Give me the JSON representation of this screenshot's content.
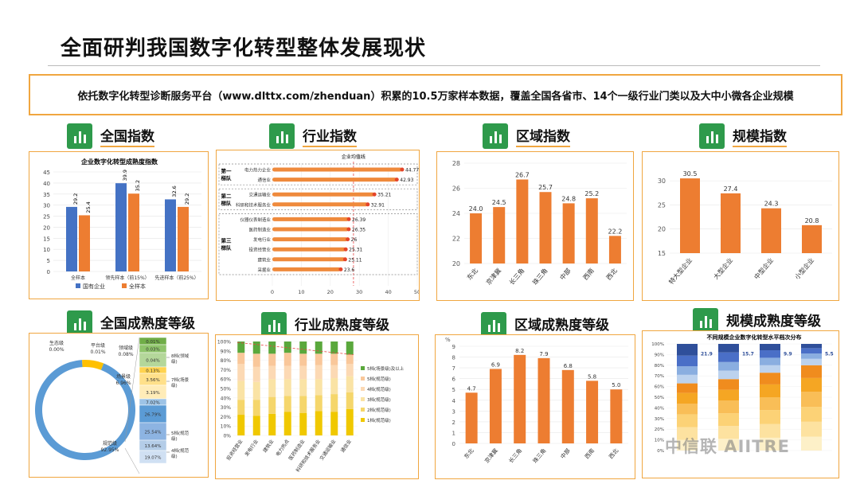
{
  "page": {
    "title": "全面研判我国数字化转型整体发展现状",
    "banner": "依托数字化转型诊断服务平台（www.dlttx.com/zhenduan）积累的10.5万家样本数据，覆盖全国各省市、14个一级行业门类以及大中小微各企业规模",
    "watermark": "中信联 AIITRE"
  },
  "sections": {
    "s1": "全国指数",
    "s2": "行业指数",
    "s3": "区域指数",
    "s4": "规模指数",
    "s5": "全国成熟度等级",
    "s6": "行业成熟度等级",
    "s7": "区域成熟度等级",
    "s8": "规模成熟度等级"
  },
  "colors": {
    "blue": "#4472c4",
    "orange": "#ed7d31",
    "accent": "#f0a640",
    "green": "#2e9a4b"
  },
  "chart_data": [
    {
      "id": "national_index",
      "type": "bar",
      "title": "企业数字化转型成熟度指数",
      "categories": [
        "全样本",
        "领先样本（前15%）",
        "先进样本（前25%）"
      ],
      "series": [
        {
          "name": "国有企业",
          "values": [
            29.2,
            39.9,
            32.6
          ]
        },
        {
          "name": "全样本",
          "values": [
            25.4,
            35.2,
            29.2
          ]
        }
      ],
      "ylim": [
        0,
        45
      ],
      "yticks": [
        0,
        5,
        10,
        15,
        20,
        25,
        30,
        35,
        40,
        45
      ],
      "legend": "bottom"
    },
    {
      "id": "industry_index",
      "type": "bar",
      "title": "企业均值线",
      "categories": [
        "电力热力企业",
        "通信业",
        "交通运输业",
        "科研和技术服务业",
        "仪器仪表制造业",
        "医药制造业",
        "发电行业",
        "投资经营业",
        "建筑业",
        "采掘业"
      ],
      "values": [
        44.77,
        42.93,
        35.21,
        32.91,
        26.39,
        26.35,
        26.0,
        25.31,
        25.11,
        23.6
      ],
      "groups": [
        {
          "label": "第一梯队",
          "count": 2
        },
        {
          "label": "第二梯队",
          "count": 2
        },
        {
          "label": "第三梯队",
          "count": 6
        }
      ],
      "xlim": [
        0,
        50
      ],
      "xticks": [
        0,
        10,
        20,
        30,
        40,
        50
      ]
    },
    {
      "id": "regional_index",
      "type": "bar",
      "categories": [
        "东北",
        "京津冀",
        "长三角",
        "珠三角",
        "中部",
        "西南",
        "西北"
      ],
      "values": [
        24.0,
        24.5,
        26.7,
        25.7,
        24.8,
        25.2,
        22.2
      ],
      "ylim": [
        20,
        28
      ],
      "yticks": [
        20,
        22,
        24,
        26,
        28
      ]
    },
    {
      "id": "scale_index",
      "type": "bar",
      "categories": [
        "特大型企业",
        "大型企业",
        "中型企业",
        "小型企业"
      ],
      "values": [
        30.5,
        27.4,
        24.3,
        20.8
      ],
      "ylim": [
        15,
        32
      ],
      "yticks": [
        15,
        20,
        25,
        30
      ]
    },
    {
      "id": "national_maturity",
      "type": "pie",
      "slices": [
        {
          "label": "规范级",
          "value": 92.95
        },
        {
          "label": "场景级",
          "value": 6.96
        },
        {
          "label": "领域级",
          "value": 0.08
        },
        {
          "label": "平台级",
          "value": 0.01
        },
        {
          "label": "生态级",
          "value": 0.0
        }
      ],
      "breakdown_levels": [
        {
          "label": "8档(领域级)",
          "values": [
            0.01,
            0.03,
            0.04
          ]
        },
        {
          "label": "7档(场景级)",
          "values": [
            0.13,
            3.56,
            3.19
          ]
        },
        {
          "label": "5档(规范级)",
          "values": [
            7.02,
            26.79,
            25.54
          ]
        },
        {
          "label": "4档(规范级)",
          "values": [
            13.64,
            19.07
          ]
        }
      ]
    },
    {
      "id": "industry_maturity",
      "type": "bar",
      "stacked": true,
      "categories": [
        "投资经营业",
        "发电行业",
        "建筑业",
        "电力热点",
        "医药制造业",
        "科研和技术服务业",
        "交通运输业",
        "通信业"
      ],
      "legend": [
        "5档(场景级)及以上",
        "5档(规范级)",
        "4档(规范级)",
        "3档(规范级)",
        "2档(规范级)",
        "1档(规范级)"
      ],
      "yticks": [
        "0%",
        "10%",
        "20%",
        "30%",
        "40%",
        "50%",
        "60%",
        "70%",
        "80%",
        "90%",
        "100%"
      ]
    },
    {
      "id": "regional_maturity",
      "type": "bar",
      "categories": [
        "东北",
        "京津冀",
        "长三角",
        "珠三角",
        "中部",
        "西南",
        "西北"
      ],
      "values": [
        4.7,
        6.9,
        8.2,
        7.9,
        6.8,
        5.8,
        5.0
      ],
      "ylabel": "%",
      "ylim": [
        0,
        9
      ],
      "yticks": [
        0,
        1,
        2,
        3,
        4,
        5,
        6,
        7,
        8,
        9
      ]
    },
    {
      "id": "scale_maturity",
      "type": "bar",
      "stacked": true,
      "title": "不同规模企业数字化转型水平档次分布",
      "labels": [
        "21.9",
        "15.7",
        "9.9",
        "5.5"
      ],
      "yticks": [
        "0%",
        "10%",
        "20%",
        "30%",
        "40%",
        "50%",
        "60%",
        "70%",
        "80%",
        "90%",
        "100%"
      ]
    }
  ]
}
